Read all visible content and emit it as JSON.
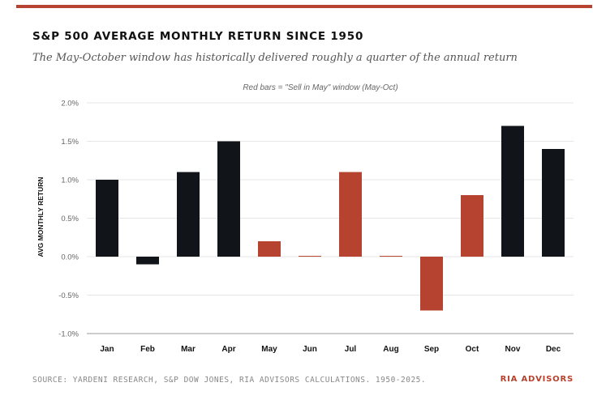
{
  "header": {
    "title": "S&P 500 AVERAGE MONTHLY RETURN SINCE 1950",
    "subtitle": "The May-October window has historically delivered roughly a quarter of the annual return"
  },
  "chart_data": {
    "type": "bar",
    "annotation": "Red bars = \"Sell in May\" window (May-Oct)",
    "ylabel": "AVG MONTHLY RETURN",
    "xlabel": "",
    "categories": [
      "Jan",
      "Feb",
      "Mar",
      "Apr",
      "May",
      "Jun",
      "Jul",
      "Aug",
      "Sep",
      "Oct",
      "Nov",
      "Dec"
    ],
    "values": [
      1.0,
      -0.1,
      1.1,
      1.5,
      0.2,
      0.01,
      1.1,
      0.01,
      -0.7,
      0.8,
      1.7,
      1.4
    ],
    "highlighted": [
      false,
      false,
      false,
      false,
      true,
      true,
      true,
      true,
      true,
      true,
      false,
      false
    ],
    "ylim": [
      -1.0,
      2.0
    ],
    "yticks": [
      2.0,
      1.5,
      1.0,
      0.5,
      0.0,
      -0.5,
      -1.0
    ],
    "ytick_labels": [
      "2.0%",
      "1.5%",
      "1.0%",
      "0.5%",
      "0.0%",
      "-0.5%",
      "-1.0%"
    ],
    "grid": true,
    "colors": {
      "base": "#111418",
      "highlight": "#b5432f",
      "grid": "#e6e6e6",
      "axis": "#999999"
    }
  },
  "footer": {
    "source": "SOURCE: YARDENI RESEARCH, S&P DOW JONES, RIA ADVISORS CALCULATIONS. 1950-2025.",
    "brand": "RIA ADVISORS"
  }
}
